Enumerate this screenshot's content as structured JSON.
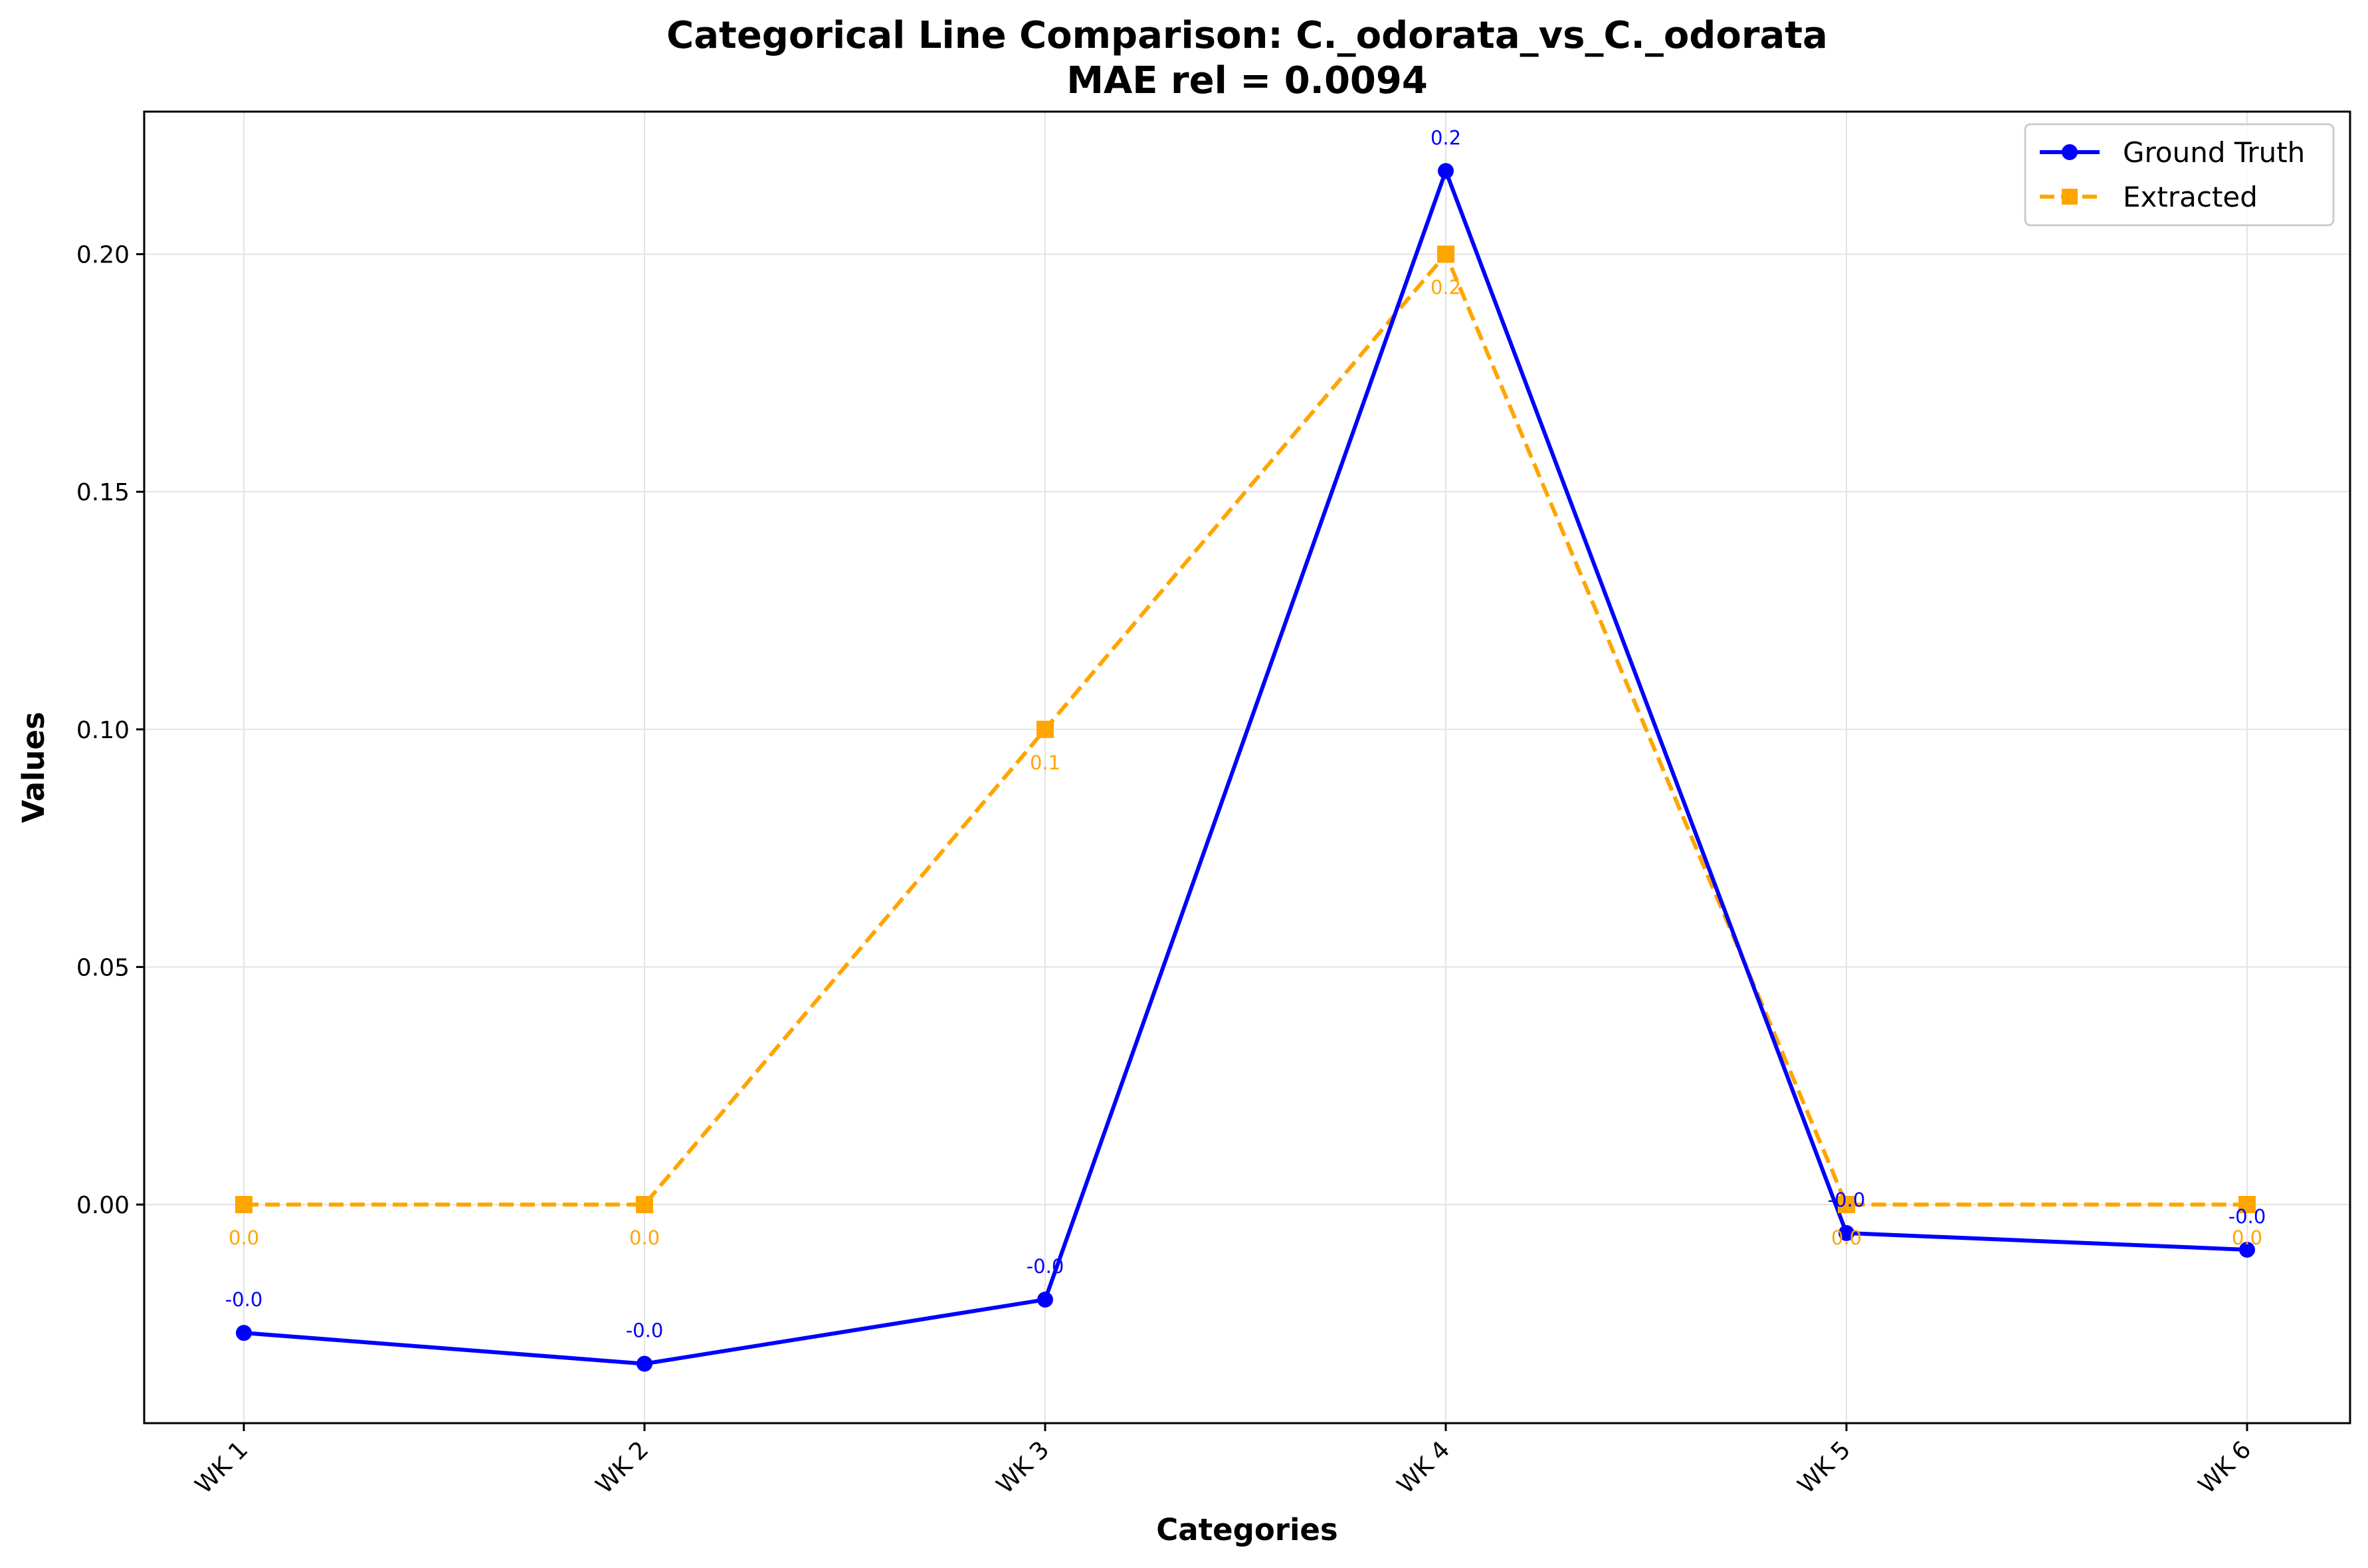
{
  "chart_data": {
    "type": "line",
    "title": "Categorical Line Comparison: C._odorata_vs_C._odorata",
    "subtitle": "MAE rel = 0.0094",
    "xlabel": "Categories",
    "ylabel": "Values",
    "categories": [
      "WK 1",
      "WK 2",
      "WK 3",
      "WK 4",
      "WK 5",
      "WK 6"
    ],
    "ylim": [
      -0.046,
      0.23
    ],
    "yticks": [
      0.0,
      0.05,
      0.1,
      0.15,
      0.2
    ],
    "ytick_labels": [
      "0.00",
      "0.05",
      "0.10",
      "0.15",
      "0.20"
    ],
    "grid": true,
    "legend_position": "top-right",
    "series": [
      {
        "name": "Ground Truth",
        "color": "#0000ff",
        "line_style": "solid",
        "marker": "circle",
        "values": [
          -0.027,
          -0.0335,
          -0.02,
          0.2175,
          -0.006,
          -0.0095
        ],
        "labels": [
          "-0.0",
          "-0.0",
          "-0.0",
          "0.2",
          "-0.0",
          "-0.0"
        ]
      },
      {
        "name": "Extracted",
        "color": "#ffa500",
        "line_style": "dashed",
        "marker": "square",
        "values": [
          0.0,
          0.0,
          0.1,
          0.2,
          0.0,
          0.0
        ],
        "labels": [
          "0.0",
          "0.0",
          "0.1",
          "0.2",
          "0.0",
          "0.0"
        ]
      }
    ]
  }
}
